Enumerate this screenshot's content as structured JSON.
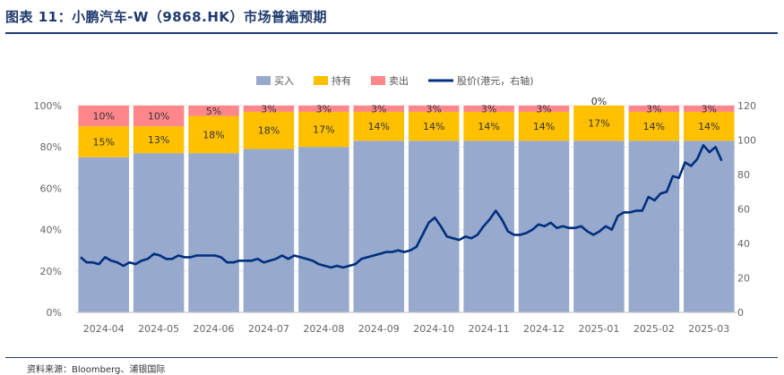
{
  "title": "图表 11：小鹏汽车-W（9868.HK）市场普遍预期",
  "source": "资料来源：Bloomberg、浦银国际",
  "colors": {
    "buy": "#97A9CC",
    "hold": "#FFC000",
    "sell": "#FF868A",
    "price": "#002F80"
  },
  "chart_data": {
    "type": "bar",
    "stacked": true,
    "categories": [
      "2024-04",
      "2024-05",
      "2024-06",
      "2024-07",
      "2024-08",
      "2024-09",
      "2024-10",
      "2024-11",
      "2024-12",
      "2025-01",
      "2025-02",
      "2025-03"
    ],
    "series": [
      {
        "name": "买入",
        "values": [
          75,
          77,
          77,
          79,
          80,
          83,
          83,
          83,
          83,
          83,
          83,
          83
        ]
      },
      {
        "name": "持有",
        "values": [
          15,
          13,
          18,
          18,
          17,
          14,
          14,
          14,
          14,
          17,
          14,
          14
        ]
      },
      {
        "name": "卖出",
        "values": [
          10,
          10,
          5,
          3,
          3,
          3,
          3,
          3,
          3,
          0,
          3,
          3
        ]
      }
    ],
    "data_labels": {
      "hold": [
        "15%",
        "13%",
        "18%",
        "18%",
        "17%",
        "14%",
        "14%",
        "14%",
        "14%",
        "17%",
        "14%",
        "14%"
      ],
      "sell": [
        "10%",
        "10%",
        "5%",
        "3%",
        "3%",
        "3%",
        "3%",
        "3%",
        "3%",
        "0%",
        "3%",
        "3%"
      ]
    },
    "line_series": {
      "name": "股价(港元，右轴)",
      "axis": "right",
      "values": [
        32,
        29,
        29,
        28,
        32,
        30,
        29,
        27,
        29,
        28,
        30,
        31,
        34,
        33,
        31,
        31,
        33,
        32,
        32,
        33,
        33,
        33,
        33,
        32,
        29,
        29,
        30,
        30,
        30,
        31,
        29,
        30,
        31,
        33,
        31,
        33,
        32,
        31,
        30,
        28,
        27,
        26,
        27,
        26,
        27,
        28,
        31,
        32,
        33,
        34,
        35,
        35,
        36,
        35,
        36,
        38,
        45,
        52,
        55,
        50,
        44,
        43,
        42,
        44,
        43,
        45,
        50,
        54,
        59,
        54,
        47,
        45,
        45,
        46,
        48,
        51,
        50,
        52,
        49,
        50,
        49,
        49,
        50,
        47,
        45,
        47,
        50,
        48,
        56,
        58,
        58,
        59,
        59,
        67,
        65,
        69,
        70,
        79,
        78,
        87,
        85,
        89,
        97,
        93,
        96,
        88
      ]
    },
    "y_left": {
      "min": 0,
      "max": 100,
      "ticks": [
        "0%",
        "20%",
        "40%",
        "60%",
        "80%",
        "100%"
      ]
    },
    "y_right": {
      "min": 0,
      "max": 120,
      "ticks": [
        "0",
        "20",
        "40",
        "60",
        "80",
        "100",
        "120"
      ]
    },
    "legend": {
      "position": "top",
      "items": [
        {
          "label": "买入",
          "kind": "rect",
          "color_key": "buy"
        },
        {
          "label": "持有",
          "kind": "rect",
          "color_key": "hold"
        },
        {
          "label": "卖出",
          "kind": "rect",
          "color_key": "sell"
        },
        {
          "label": "股价(港元，右轴)",
          "kind": "line",
          "color_key": "price"
        }
      ]
    }
  }
}
